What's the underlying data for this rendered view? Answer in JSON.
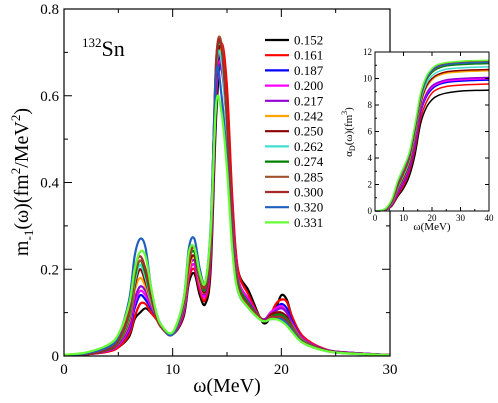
{
  "chart_data": [
    {
      "type": "line",
      "annotation": {
        "mass": "132",
        "element": "Sn"
      },
      "xlabel": "ω(MeV)",
      "ylabel": "m-1(ω)(fm²/MeV²)",
      "ylabel_parts": {
        "main": "m",
        "sub": "-1",
        "arg": "(ω)(fm",
        "sup1": "2",
        "mid": "/MeV",
        "sup2": "2",
        "end": ")"
      },
      "xlim": [
        0,
        30
      ],
      "ylim": [
        0,
        0.8
      ],
      "xticks": [
        "0",
        "10",
        "20",
        "30"
      ],
      "yticks": [
        "0",
        "0.2",
        "0.4",
        "0.6",
        "0.8"
      ],
      "grid": false,
      "legend_position": "top-right",
      "x": [
        0,
        2,
        4,
        5,
        6,
        6.5,
        7,
        7.5,
        8,
        8.5,
        9,
        10,
        11,
        11.5,
        12,
        12.5,
        13,
        13.5,
        14,
        14.5,
        15,
        15.5,
        16,
        17,
        18,
        18.5,
        19,
        19.5,
        20,
        20.5,
        21,
        22,
        24,
        26,
        30
      ],
      "series": [
        {
          "name": "0.152",
          "color": "#000000",
          "values": [
            0.002,
            0.004,
            0.01,
            0.02,
            0.045,
            0.085,
            0.1,
            0.11,
            0.1,
            0.085,
            0.065,
            0.05,
            0.09,
            0.17,
            0.19,
            0.14,
            0.12,
            0.2,
            0.55,
            0.7,
            0.6,
            0.35,
            0.2,
            0.15,
            0.09,
            0.075,
            0.09,
            0.11,
            0.14,
            0.13,
            0.09,
            0.04,
            0.015,
            0.008,
            0.002
          ]
        },
        {
          "name": "0.161",
          "color": "#ff0000",
          "values": [
            0.002,
            0.004,
            0.01,
            0.02,
            0.05,
            0.09,
            0.12,
            0.12,
            0.1,
            0.085,
            0.065,
            0.05,
            0.095,
            0.18,
            0.2,
            0.15,
            0.13,
            0.22,
            0.6,
            0.72,
            0.62,
            0.36,
            0.2,
            0.14,
            0.09,
            0.08,
            0.095,
            0.12,
            0.13,
            0.125,
            0.09,
            0.045,
            0.016,
            0.008,
            0.002
          ]
        },
        {
          "name": "0.187",
          "color": "#0000ff",
          "values": [
            0.002,
            0.004,
            0.012,
            0.025,
            0.06,
            0.11,
            0.14,
            0.13,
            0.11,
            0.09,
            0.065,
            0.05,
            0.1,
            0.19,
            0.21,
            0.16,
            0.14,
            0.24,
            0.62,
            0.69,
            0.55,
            0.32,
            0.18,
            0.13,
            0.09,
            0.085,
            0.1,
            0.11,
            0.12,
            0.11,
            0.08,
            0.04,
            0.015,
            0.008,
            0.002
          ]
        },
        {
          "name": "0.200",
          "color": "#ff00ff",
          "values": [
            0.002,
            0.004,
            0.012,
            0.025,
            0.065,
            0.12,
            0.15,
            0.14,
            0.115,
            0.09,
            0.065,
            0.05,
            0.1,
            0.19,
            0.21,
            0.16,
            0.14,
            0.24,
            0.6,
            0.68,
            0.55,
            0.32,
            0.18,
            0.13,
            0.09,
            0.085,
            0.1,
            0.11,
            0.115,
            0.1,
            0.075,
            0.04,
            0.015,
            0.008,
            0.002
          ]
        },
        {
          "name": "0.217",
          "color": "#9400d3",
          "values": [
            0.002,
            0.004,
            0.013,
            0.028,
            0.07,
            0.13,
            0.16,
            0.15,
            0.12,
            0.09,
            0.065,
            0.05,
            0.105,
            0.2,
            0.22,
            0.17,
            0.145,
            0.25,
            0.62,
            0.66,
            0.53,
            0.31,
            0.17,
            0.125,
            0.09,
            0.085,
            0.095,
            0.105,
            0.11,
            0.1,
            0.072,
            0.038,
            0.015,
            0.008,
            0.002
          ]
        },
        {
          "name": "0.242",
          "color": "#ffa500",
          "values": [
            0.002,
            0.004,
            0.014,
            0.03,
            0.08,
            0.15,
            0.18,
            0.16,
            0.125,
            0.09,
            0.065,
            0.05,
            0.11,
            0.2,
            0.23,
            0.17,
            0.15,
            0.26,
            0.64,
            0.7,
            0.55,
            0.3,
            0.17,
            0.12,
            0.09,
            0.08,
            0.095,
            0.1,
            0.1,
            0.09,
            0.07,
            0.036,
            0.014,
            0.007,
            0.002
          ]
        },
        {
          "name": "0.250",
          "color": "#8b0000",
          "values": [
            0.002,
            0.004,
            0.014,
            0.03,
            0.085,
            0.16,
            0.2,
            0.17,
            0.13,
            0.09,
            0.065,
            0.05,
            0.11,
            0.21,
            0.23,
            0.175,
            0.15,
            0.26,
            0.64,
            0.71,
            0.56,
            0.3,
            0.17,
            0.12,
            0.09,
            0.08,
            0.095,
            0.1,
            0.1,
            0.09,
            0.068,
            0.035,
            0.014,
            0.007,
            0.002
          ]
        },
        {
          "name": "0.262",
          "color": "#40e0d0",
          "values": [
            0.002,
            0.005,
            0.015,
            0.032,
            0.09,
            0.17,
            0.21,
            0.18,
            0.13,
            0.09,
            0.065,
            0.05,
            0.115,
            0.22,
            0.24,
            0.18,
            0.155,
            0.27,
            0.66,
            0.68,
            0.52,
            0.29,
            0.17,
            0.12,
            0.09,
            0.08,
            0.09,
            0.095,
            0.095,
            0.085,
            0.065,
            0.034,
            0.013,
            0.007,
            0.002
          ]
        },
        {
          "name": "0.274",
          "color": "#008000",
          "values": [
            0.002,
            0.005,
            0.015,
            0.033,
            0.095,
            0.18,
            0.22,
            0.19,
            0.135,
            0.09,
            0.065,
            0.05,
            0.12,
            0.22,
            0.24,
            0.18,
            0.155,
            0.27,
            0.67,
            0.71,
            0.54,
            0.29,
            0.17,
            0.12,
            0.09,
            0.08,
            0.09,
            0.095,
            0.095,
            0.085,
            0.064,
            0.033,
            0.013,
            0.007,
            0.002
          ]
        },
        {
          "name": "0.285",
          "color": "#a0522d",
          "values": [
            0.002,
            0.005,
            0.016,
            0.035,
            0.1,
            0.19,
            0.22,
            0.2,
            0.14,
            0.09,
            0.065,
            0.05,
            0.12,
            0.22,
            0.25,
            0.185,
            0.16,
            0.28,
            0.68,
            0.72,
            0.55,
            0.29,
            0.16,
            0.115,
            0.09,
            0.08,
            0.09,
            0.09,
            0.09,
            0.08,
            0.062,
            0.032,
            0.013,
            0.007,
            0.002
          ]
        },
        {
          "name": "0.300",
          "color": "#a52a2a",
          "values": [
            0.002,
            0.005,
            0.016,
            0.036,
            0.105,
            0.2,
            0.23,
            0.2,
            0.14,
            0.09,
            0.065,
            0.05,
            0.12,
            0.23,
            0.25,
            0.19,
            0.16,
            0.28,
            0.68,
            0.71,
            0.54,
            0.28,
            0.16,
            0.115,
            0.09,
            0.08,
            0.09,
            0.09,
            0.09,
            0.08,
            0.06,
            0.032,
            0.013,
            0.007,
            0.002
          ]
        },
        {
          "name": "0.320",
          "color": "#1f5fbf",
          "values": [
            0.002,
            0.006,
            0.02,
            0.045,
            0.13,
            0.23,
            0.27,
            0.25,
            0.16,
            0.1,
            0.07,
            0.05,
            0.13,
            0.25,
            0.27,
            0.2,
            0.17,
            0.3,
            0.65,
            0.6,
            0.45,
            0.25,
            0.15,
            0.11,
            0.085,
            0.08,
            0.085,
            0.085,
            0.085,
            0.075,
            0.058,
            0.03,
            0.012,
            0.006,
            0.002
          ]
        },
        {
          "name": "0.331",
          "color": "#66ff33",
          "values": [
            0.003,
            0.008,
            0.025,
            0.05,
            0.12,
            0.2,
            0.24,
            0.23,
            0.16,
            0.1,
            0.07,
            0.055,
            0.13,
            0.24,
            0.25,
            0.19,
            0.17,
            0.29,
            0.58,
            0.56,
            0.43,
            0.24,
            0.15,
            0.11,
            0.085,
            0.08,
            0.085,
            0.085,
            0.08,
            0.07,
            0.055,
            0.03,
            0.012,
            0.006,
            0.002
          ]
        }
      ]
    },
    {
      "type": "line",
      "role": "inset",
      "xlabel": "ω(MeV)",
      "ylabel": "αD(ω)(fm³)",
      "ylabel_parts": {
        "main": "α",
        "sub": "D",
        "arg": "(ω)(fm",
        "sup": "3",
        "end": ")"
      },
      "xlim": [
        0,
        40
      ],
      "ylim": [
        0,
        12
      ],
      "xticks": [
        "0",
        "10",
        "20",
        "30",
        "40"
      ],
      "yticks": [
        "0",
        "2",
        "4",
        "6",
        "8",
        "10",
        "12"
      ],
      "x": [
        0,
        2,
        4,
        6,
        8,
        10,
        12,
        14,
        16,
        18,
        20,
        22,
        25,
        30,
        35,
        40
      ],
      "series": [
        {
          "name": "0.152",
          "color": "#000000",
          "values": [
            0,
            0.02,
            0.1,
            0.4,
            1.1,
            1.7,
            2.6,
            4.2,
            6.6,
            7.8,
            8.4,
            8.7,
            8.9,
            9.05,
            9.1,
            9.12
          ]
        },
        {
          "name": "0.161",
          "color": "#ff0000",
          "values": [
            0,
            0.02,
            0.1,
            0.45,
            1.2,
            1.9,
            2.9,
            4.6,
            7.0,
            8.2,
            8.9,
            9.2,
            9.4,
            9.5,
            9.55,
            9.58
          ]
        },
        {
          "name": "0.187",
          "color": "#0000ff",
          "values": [
            0,
            0.02,
            0.12,
            0.5,
            1.35,
            2.1,
            3.1,
            4.9,
            7.4,
            8.6,
            9.2,
            9.5,
            9.7,
            9.8,
            9.85,
            9.88
          ]
        },
        {
          "name": "0.200",
          "color": "#ff00ff",
          "values": [
            0,
            0.02,
            0.12,
            0.52,
            1.4,
            2.15,
            3.15,
            5.0,
            7.5,
            8.75,
            9.35,
            9.6,
            9.8,
            9.9,
            9.95,
            9.98
          ]
        },
        {
          "name": "0.217",
          "color": "#9400d3",
          "values": [
            0,
            0.02,
            0.13,
            0.55,
            1.45,
            2.2,
            3.2,
            5.1,
            7.6,
            8.85,
            9.45,
            9.7,
            9.9,
            10.0,
            10.05,
            10.08
          ]
        },
        {
          "name": "0.242",
          "color": "#ffa500",
          "values": [
            0,
            0.03,
            0.15,
            0.6,
            1.6,
            2.45,
            3.5,
            5.5,
            8.0,
            9.3,
            9.9,
            10.2,
            10.4,
            10.5,
            10.55,
            10.58
          ]
        },
        {
          "name": "0.250",
          "color": "#8b0000",
          "values": [
            0,
            0.03,
            0.15,
            0.62,
            1.65,
            2.5,
            3.55,
            5.6,
            8.1,
            9.4,
            10.0,
            10.3,
            10.5,
            10.6,
            10.65,
            10.68
          ]
        },
        {
          "name": "0.262",
          "color": "#40e0d0",
          "values": [
            0,
            0.03,
            0.16,
            0.65,
            1.75,
            2.65,
            3.75,
            5.8,
            8.3,
            9.6,
            10.2,
            10.5,
            10.7,
            10.8,
            10.85,
            10.88
          ]
        },
        {
          "name": "0.274",
          "color": "#008000",
          "values": [
            0,
            0.03,
            0.17,
            0.7,
            1.85,
            2.8,
            3.9,
            6.0,
            8.5,
            9.85,
            10.45,
            10.75,
            10.95,
            11.05,
            11.1,
            11.13
          ]
        },
        {
          "name": "0.285",
          "color": "#a0522d",
          "values": [
            0,
            0.03,
            0.17,
            0.72,
            1.9,
            2.85,
            3.95,
            6.1,
            8.6,
            9.95,
            10.55,
            10.85,
            11.05,
            11.15,
            11.2,
            11.23
          ]
        },
        {
          "name": "0.300",
          "color": "#a52a2a",
          "values": [
            0,
            0.03,
            0.18,
            0.74,
            1.95,
            2.9,
            4.0,
            6.15,
            8.7,
            10.05,
            10.65,
            10.95,
            11.15,
            11.25,
            11.3,
            11.33
          ]
        },
        {
          "name": "0.320",
          "color": "#1f5fbf",
          "values": [
            0,
            0.04,
            0.22,
            0.9,
            2.2,
            3.2,
            4.3,
            6.4,
            8.8,
            10.0,
            10.6,
            10.9,
            11.05,
            11.15,
            11.2,
            11.22
          ]
        },
        {
          "name": "0.331",
          "color": "#66ff33",
          "values": [
            0,
            0.05,
            0.25,
            0.95,
            2.3,
            3.3,
            4.4,
            6.5,
            8.9,
            10.15,
            10.75,
            11.05,
            11.2,
            11.3,
            11.35,
            11.38
          ]
        }
      ]
    }
  ]
}
